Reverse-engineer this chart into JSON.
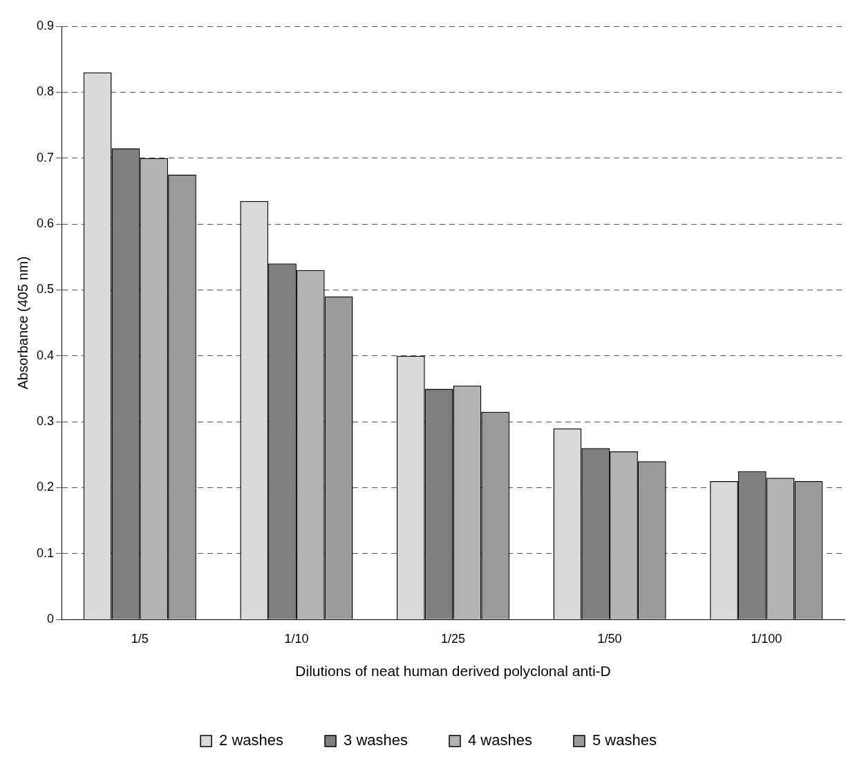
{
  "chart_data": {
    "type": "bar",
    "xlabel": "Dilutions of neat human derived polyclonal anti-D",
    "ylabel": "Absorbance (405 nm)",
    "categories": [
      "1/5",
      "1/10",
      "1/25",
      "1/50",
      "1/100"
    ],
    "series": [
      {
        "name": "2 washes",
        "color": "#d9d9d9",
        "values": [
          0.83,
          0.635,
          0.4,
          0.29,
          0.21
        ]
      },
      {
        "name": "3 washes",
        "color": "#7f7f7f",
        "values": [
          0.715,
          0.54,
          0.35,
          0.26,
          0.225
        ]
      },
      {
        "name": "4 washes",
        "color": "#b3b3b3",
        "values": [
          0.7,
          0.53,
          0.355,
          0.255,
          0.215
        ]
      },
      {
        "name": "5 washes",
        "color": "#9a9a9a",
        "values": [
          0.675,
          0.49,
          0.315,
          0.24,
          0.21
        ]
      }
    ],
    "ylim": [
      0,
      0.9
    ],
    "yticks": [
      0,
      0.1,
      0.2,
      0.3,
      0.4,
      0.5,
      0.6,
      0.7,
      0.8,
      0.9
    ],
    "grid": "y",
    "legend": "bottom"
  }
}
